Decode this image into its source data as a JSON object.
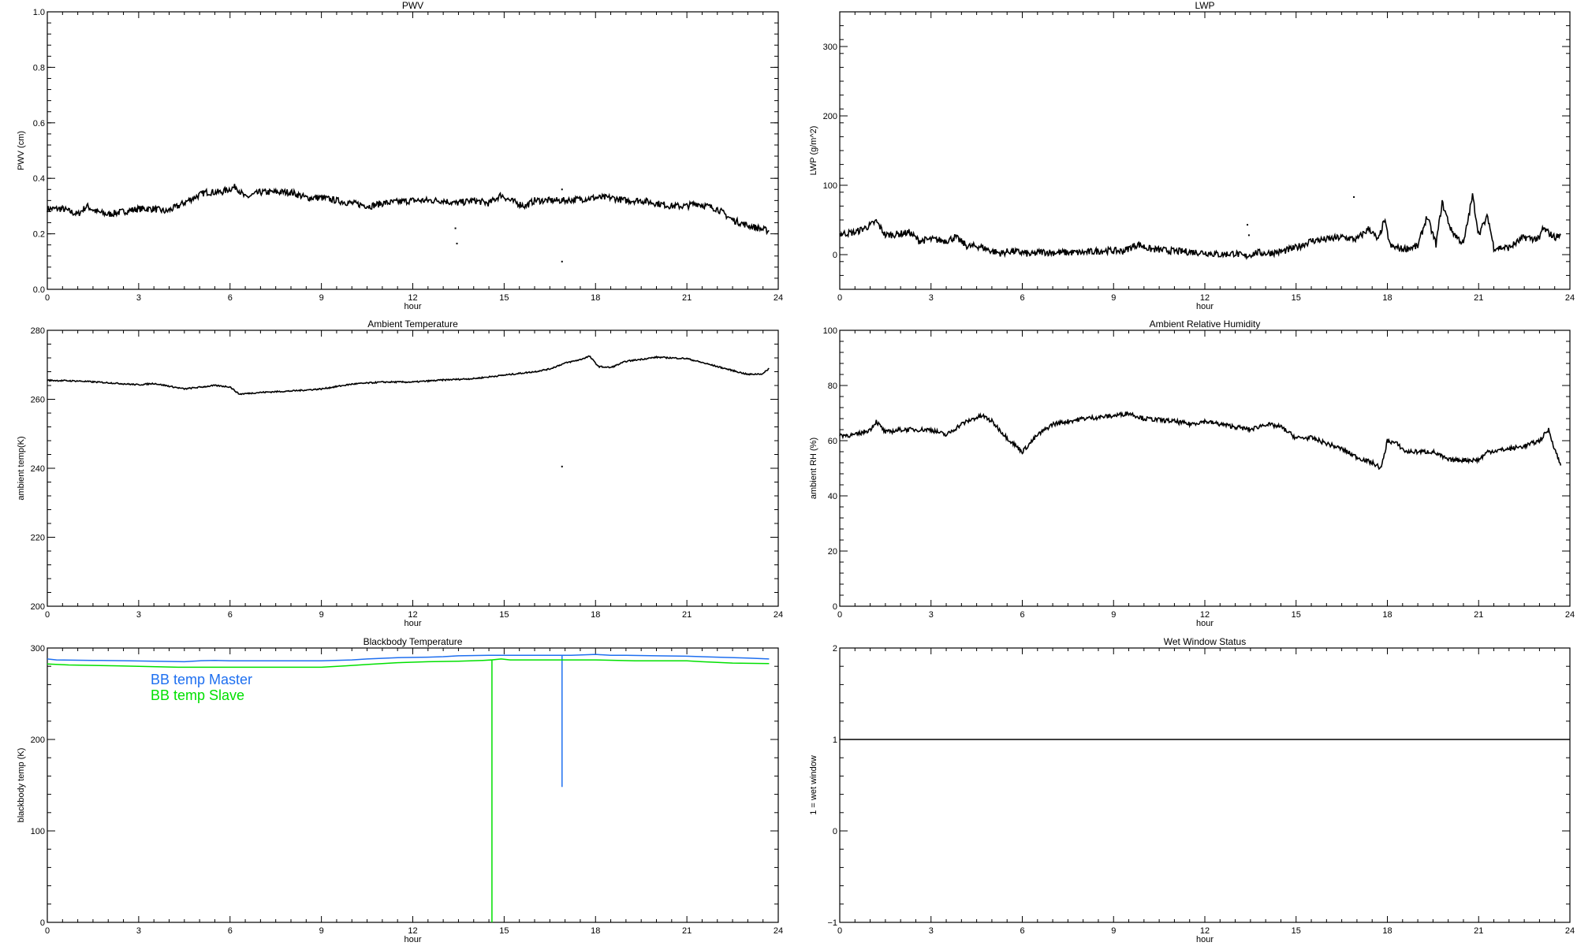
{
  "chart_data": [
    {
      "id": "pwv",
      "type": "line",
      "title": "PWV",
      "xlabel": "hour",
      "ylabel": "PWV (cm)",
      "xlim": [
        0,
        24
      ],
      "ylim": [
        0,
        1.0
      ],
      "xticks": [
        "0",
        "3",
        "6",
        "9",
        "12",
        "15",
        "18",
        "21",
        "24"
      ],
      "yticks": [
        0.0,
        0.2,
        0.4,
        0.6,
        0.8,
        1.0
      ],
      "ytick_labels": [
        "0.0",
        "0.2",
        "0.4",
        "0.6",
        "0.8",
        "1.0"
      ],
      "noise": 0.012,
      "series": [
        {
          "name": "PWV",
          "color": "#000000",
          "x": [
            0,
            0.5,
            1,
            1.3,
            1.6,
            2,
            2.5,
            3,
            3.5,
            3.9,
            4.3,
            4.8,
            5.2,
            5.7,
            6.2,
            6.5,
            7,
            7.5,
            8,
            8.5,
            9,
            9.5,
            10,
            10.6,
            11,
            12,
            13,
            13.4,
            14,
            14.5,
            14.9,
            15.2,
            15.7,
            16,
            17,
            18,
            18.5,
            19,
            19.5,
            20,
            20.5,
            21,
            21.3,
            22,
            22.5,
            23,
            23.7
          ],
          "y": [
            0.29,
            0.29,
            0.27,
            0.3,
            0.28,
            0.27,
            0.28,
            0.29,
            0.29,
            0.28,
            0.3,
            0.33,
            0.35,
            0.35,
            0.37,
            0.33,
            0.35,
            0.35,
            0.35,
            0.33,
            0.33,
            0.32,
            0.31,
            0.3,
            0.31,
            0.32,
            0.32,
            0.31,
            0.32,
            0.31,
            0.34,
            0.32,
            0.3,
            0.32,
            0.32,
            0.33,
            0.33,
            0.32,
            0.32,
            0.31,
            0.3,
            0.3,
            0.31,
            0.29,
            0.25,
            0.23,
            0.21
          ]
        },
        {
          "name": "outliers",
          "color": "#000000",
          "points": true,
          "x": [
            13.4,
            13.45,
            16.9,
            16.9
          ],
          "y": [
            0.22,
            0.165,
            0.1,
            0.36
          ]
        }
      ]
    },
    {
      "id": "lwp",
      "type": "line",
      "title": "LWP",
      "xlabel": "hour",
      "ylabel": "LWP (g/m^2)",
      "xlim": [
        0,
        24
      ],
      "ylim": [
        -50,
        350
      ],
      "xticks": [
        "0",
        "3",
        "6",
        "9",
        "12",
        "15",
        "18",
        "21",
        "24"
      ],
      "yticks": [
        0,
        100,
        200,
        300
      ],
      "ytick_labels": [
        "0",
        "100",
        "200",
        "300"
      ],
      "noise": 5,
      "series": [
        {
          "name": "LWP",
          "color": "#000000",
          "x": [
            0,
            0.5,
            1,
            1.2,
            1.5,
            2,
            2.3,
            2.6,
            3,
            3.5,
            3.8,
            4.2,
            4.6,
            5,
            5.3,
            5.6,
            6,
            6.3,
            6.6,
            7,
            8,
            8.7,
            9.3,
            9.8,
            10.2,
            11,
            12,
            12.5,
            13,
            13.3,
            13.7,
            14,
            14.5,
            15,
            15.5,
            16,
            16.5,
            17,
            17.4,
            17.7,
            17.9,
            18.1,
            18.5,
            19,
            19.3,
            19.6,
            19.8,
            20.1,
            20.5,
            20.8,
            21,
            21.3,
            21.5,
            22,
            22.5,
            23,
            23.1,
            23.5,
            23.7
          ],
          "y": [
            30,
            32,
            42,
            48,
            28,
            30,
            32,
            20,
            22,
            20,
            25,
            12,
            12,
            5,
            2,
            5,
            3,
            0,
            4,
            3,
            3,
            6,
            5,
            15,
            8,
            5,
            3,
            0,
            2,
            -3,
            3,
            2,
            4,
            10,
            20,
            22,
            25,
            22,
            38,
            20,
            50,
            12,
            8,
            12,
            55,
            15,
            75,
            35,
            15,
            85,
            30,
            55,
            10,
            10,
            25,
            22,
            38,
            25,
            28
          ]
        },
        {
          "name": "outliers",
          "color": "#000000",
          "points": true,
          "x": [
            13.4,
            13.45,
            16.9
          ],
          "y": [
            43,
            28,
            83
          ]
        }
      ]
    },
    {
      "id": "ambient-temp",
      "type": "line",
      "title": "Ambient Temperature",
      "xlabel": "hour",
      "ylabel": "ambient temp(K)",
      "xlim": [
        0,
        24
      ],
      "ylim": [
        200,
        280
      ],
      "xticks": [
        "0",
        "3",
        "6",
        "9",
        "12",
        "15",
        "18",
        "21",
        "24"
      ],
      "yticks": [
        200,
        220,
        240,
        260,
        280
      ],
      "ytick_labels": [
        "200",
        "220",
        "240",
        "260",
        "280"
      ],
      "noise": 0.2,
      "series": [
        {
          "name": "ambient temp",
          "color": "#000000",
          "x": [
            0,
            1,
            2,
            3,
            3.5,
            4.5,
            5.5,
            6,
            6.3,
            7,
            8,
            9,
            10,
            11,
            12,
            13,
            14,
            15,
            15.5,
            16,
            16.5,
            17,
            17.5,
            17.8,
            18.1,
            18.5,
            19,
            20,
            21,
            22,
            23,
            23.5,
            23.7
          ],
          "y": [
            265.5,
            265.3,
            264.8,
            264.2,
            264.6,
            263,
            264,
            263.6,
            261.5,
            262,
            262.4,
            263,
            264.4,
            265,
            265,
            265.6,
            266,
            267,
            267.5,
            268,
            268.8,
            270.5,
            271.5,
            272.5,
            269.5,
            269.2,
            271,
            272.2,
            271.8,
            269.5,
            267.2,
            267.4,
            269
          ]
        },
        {
          "name": "outliers",
          "color": "#000000",
          "points": true,
          "x": [
            16.9
          ],
          "y": [
            240.5
          ]
        }
      ]
    },
    {
      "id": "ambient-rh",
      "type": "line",
      "title": "Ambient Relative Humidity",
      "xlabel": "hour",
      "ylabel": "ambient RH (%)",
      "xlim": [
        0,
        24
      ],
      "ylim": [
        0,
        100
      ],
      "xticks": [
        "0",
        "3",
        "6",
        "9",
        "12",
        "15",
        "18",
        "21",
        "24"
      ],
      "yticks": [
        0,
        20,
        40,
        60,
        80,
        100
      ],
      "ytick_labels": [
        "0",
        "20",
        "40",
        "60",
        "80",
        "100"
      ],
      "noise": 0.8,
      "series": [
        {
          "name": "ambient RH",
          "color": "#000000",
          "x": [
            0,
            0.5,
            1,
            1.2,
            1.5,
            2,
            3,
            3.5,
            4,
            4.4,
            4.7,
            5,
            5.5,
            6,
            6.5,
            7,
            8,
            9,
            9.5,
            10,
            11,
            11.5,
            12,
            13,
            13.5,
            14,
            14.5,
            15,
            15.5,
            16,
            16.5,
            17,
            17.5,
            17.8,
            18,
            18.3,
            18.6,
            19,
            19.5,
            20,
            21,
            21.3,
            22,
            22.5,
            23,
            23.3,
            23.5,
            23.7
          ],
          "y": [
            62,
            62,
            64,
            67,
            63,
            64,
            64,
            62,
            66,
            68,
            69,
            67,
            61,
            56,
            62,
            66,
            68,
            69,
            70,
            68,
            67,
            66,
            67,
            65,
            64,
            66,
            65,
            61,
            61,
            59,
            57,
            54,
            52,
            50,
            60,
            59,
            56,
            56,
            56,
            53,
            53,
            56,
            57,
            58,
            60,
            64,
            57,
            51
          ]
        }
      ]
    },
    {
      "id": "blackbody-temp",
      "type": "line",
      "title": "Blackbody Temperature",
      "xlabel": "hour",
      "ylabel": "blackbody temp (K)",
      "xlim": [
        0,
        24
      ],
      "ylim": [
        0,
        300
      ],
      "xticks": [
        "0",
        "3",
        "6",
        "9",
        "12",
        "15",
        "18",
        "21",
        "24"
      ],
      "yticks": [
        0,
        100,
        200,
        300
      ],
      "ytick_labels": [
        "0",
        "100",
        "200",
        "300"
      ],
      "legend": [
        "BB temp Master",
        "BB temp Slave"
      ],
      "legend_placement": "top-left",
      "noise": 0,
      "series": [
        {
          "name": "BB temp Master",
          "color": "#1e6ff0",
          "x": [
            0,
            0.3,
            1.5,
            2.7,
            4.5,
            5,
            5.5,
            6,
            9,
            10,
            10.5,
            11.5,
            12.5,
            13,
            13.5,
            14.5,
            15,
            16,
            16.9,
            16.9,
            16.9,
            17.2,
            18,
            18.5,
            19,
            20,
            21,
            22,
            23,
            23.7
          ],
          "y": [
            288,
            287,
            286.5,
            286,
            285,
            286,
            286.5,
            286,
            286,
            287,
            288,
            289.5,
            290,
            290.5,
            291.5,
            292,
            292,
            292,
            292,
            148,
            292,
            292,
            293,
            292,
            292,
            291.5,
            291,
            290,
            289,
            288
          ]
        },
        {
          "name": "BB temp Slave",
          "color": "#00e000",
          "x": [
            0,
            0.7,
            2.3,
            4.3,
            6,
            9,
            9.8,
            10.5,
            11.5,
            12.5,
            13.5,
            14.3,
            14.6,
            14.6,
            14.6,
            14.9,
            15.2,
            16,
            18,
            19.3,
            20,
            21,
            21.5,
            22.5,
            23.7
          ],
          "y": [
            282.5,
            281.5,
            280.5,
            279,
            279,
            279,
            280.5,
            282,
            284,
            285,
            285.5,
            286.5,
            287,
            0,
            287,
            288,
            287,
            287,
            287,
            286,
            286,
            286,
            285,
            283.5,
            283
          ]
        }
      ]
    },
    {
      "id": "wet-window",
      "type": "line",
      "title": "Wet Window Status",
      "xlabel": "hour",
      "ylabel": "1 = wet window",
      "xlim": [
        0,
        24
      ],
      "ylim": [
        -1,
        2
      ],
      "xticks": [
        "0",
        "3",
        "6",
        "9",
        "12",
        "15",
        "18",
        "21",
        "24"
      ],
      "yticks": [
        -1,
        0,
        1,
        2
      ],
      "ytick_labels": [
        "−1",
        "0",
        "1",
        "2"
      ],
      "noise": 0,
      "series": [
        {
          "name": "wet window",
          "color": "#000000",
          "x": [
            0,
            24
          ],
          "y": [
            1,
            1
          ]
        }
      ]
    }
  ]
}
